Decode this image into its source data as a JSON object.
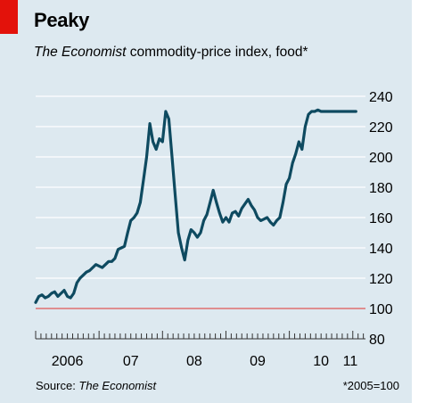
{
  "title": "Peaky",
  "subtitle": {
    "italic_part": "The Economist",
    "rest": " commodity-price index, food*"
  },
  "source": {
    "label": "Source: ",
    "italic_part": "The Economist"
  },
  "footnote": "*2005=100",
  "colors": {
    "line": "#0e4a60",
    "baseline": "#e07070",
    "grid": "#ffffff",
    "background": "#dde9f0",
    "accent": "#e3120b"
  },
  "chart_data": {
    "type": "line",
    "title": "Peaky",
    "subtitle": "The Economist commodity-price index, food*",
    "ylim": [
      80,
      240
    ],
    "yticks": [
      80,
      100,
      120,
      140,
      160,
      180,
      200,
      220,
      240
    ],
    "xlim": [
      2006.0,
      2011.2
    ],
    "xtick_labels": [
      {
        "x": 2006.5,
        "label": "2006"
      },
      {
        "x": 2007.5,
        "label": "07"
      },
      {
        "x": 2008.5,
        "label": "08"
      },
      {
        "x": 2009.5,
        "label": "09"
      },
      {
        "x": 2010.5,
        "label": "10"
      },
      {
        "x": 2010.96,
        "label": "11"
      }
    ],
    "baseline": 100,
    "grid": true,
    "series": [
      {
        "name": "",
        "x": [
          2006.0,
          2006.05,
          2006.1,
          2006.15,
          2006.2,
          2006.25,
          2006.3,
          2006.35,
          2006.4,
          2006.45,
          2006.5,
          2006.55,
          2006.6,
          2006.65,
          2006.7,
          2006.75,
          2006.8,
          2006.85,
          2006.9,
          2006.95,
          2007.0,
          2007.05,
          2007.1,
          2007.15,
          2007.2,
          2007.25,
          2007.3,
          2007.35,
          2007.4,
          2007.45,
          2007.5,
          2007.55,
          2007.6,
          2007.65,
          2007.7,
          2007.75,
          2007.8,
          2007.85,
          2007.9,
          2007.95,
          2008.0,
          2008.05,
          2008.1,
          2008.15,
          2008.2,
          2008.25,
          2008.3,
          2008.35,
          2008.4,
          2008.45,
          2008.5,
          2008.55,
          2008.6,
          2008.65,
          2008.7,
          2008.75,
          2008.8,
          2008.85,
          2008.9,
          2008.95,
          2009.0,
          2009.05,
          2009.1,
          2009.15,
          2009.2,
          2009.25,
          2009.3,
          2009.35,
          2009.4,
          2009.45,
          2009.5,
          2009.55,
          2009.6,
          2009.65,
          2009.7,
          2009.75,
          2009.8,
          2009.85,
          2009.9,
          2009.95,
          2010.0,
          2010.05,
          2010.1,
          2010.15,
          2010.2,
          2010.25,
          2010.3,
          2010.35,
          2010.4,
          2010.45,
          2010.5,
          2010.55,
          2010.6,
          2010.65,
          2010.7,
          2010.75,
          2010.8,
          2010.85,
          2010.9,
          2010.95,
          2011.0,
          2011.05
        ],
        "values": [
          104,
          108,
          109,
          107,
          108,
          110,
          111,
          108,
          110,
          112,
          108,
          107,
          110,
          117,
          120,
          122,
          124,
          125,
          127,
          129,
          128,
          127,
          129,
          131,
          131,
          133,
          139,
          140,
          141,
          150,
          158,
          160,
          163,
          170,
          185,
          200,
          222,
          210,
          205,
          212,
          210,
          230,
          225,
          200,
          175,
          150,
          140,
          132,
          145,
          152,
          150,
          147,
          150,
          158,
          162,
          170,
          178,
          170,
          163,
          157,
          160,
          157,
          163,
          164,
          161,
          166,
          169,
          172,
          168,
          165,
          160,
          158,
          159,
          160,
          157,
          155,
          158,
          160,
          170,
          182,
          186,
          196,
          202,
          210,
          205,
          220,
          228,
          230,
          230,
          231,
          230,
          230,
          230,
          230,
          230,
          230,
          230,
          230,
          230,
          230,
          230,
          230
        ]
      }
    ]
  }
}
